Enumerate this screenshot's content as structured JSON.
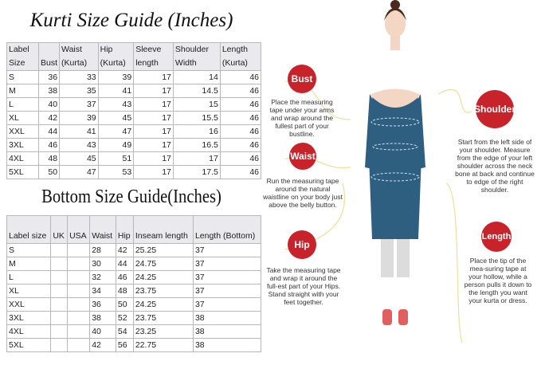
{
  "kurti": {
    "title": "Kurti Size Guide (Inches)",
    "headers": [
      "Label Size",
      "Bust",
      "Waist (Kurta)",
      "Hip (Kurta)",
      "Sleeve length",
      "Shoulder Width",
      "Length (Kurta)"
    ],
    "rows": [
      [
        "S",
        "36",
        "33",
        "39",
        "17",
        "14",
        "46"
      ],
      [
        "M",
        "38",
        "35",
        "41",
        "17",
        "14.5",
        "46"
      ],
      [
        "L",
        "40",
        "37",
        "43",
        "17",
        "15",
        "46"
      ],
      [
        "XL",
        "42",
        "39",
        "45",
        "17",
        "15.5",
        "46"
      ],
      [
        "XXL",
        "44",
        "41",
        "47",
        "17",
        "16",
        "46"
      ],
      [
        "3XL",
        "46",
        "43",
        "49",
        "17",
        "16.5",
        "46"
      ],
      [
        "4XL",
        "48",
        "45",
        "51",
        "17",
        "17",
        "46"
      ],
      [
        "5XL",
        "50",
        "47",
        "53",
        "17",
        "17.5",
        "46"
      ]
    ]
  },
  "bottom": {
    "title": "Bottom Size Guide(Inches)",
    "headers": [
      "Label size",
      "UK",
      "USA",
      "Waist",
      "Hip",
      "Inseam length",
      "Length (Bottom)"
    ],
    "rows": [
      [
        "S",
        "",
        "",
        "28",
        "42",
        "25.25",
        "37"
      ],
      [
        "M",
        "",
        "",
        "30",
        "44",
        "24.75",
        "37"
      ],
      [
        "L",
        "",
        "",
        "32",
        "46",
        "24.25",
        "37"
      ],
      [
        "XL",
        "",
        "",
        "34",
        "48",
        "23.75",
        "37"
      ],
      [
        "XXL",
        "",
        "",
        "36",
        "50",
        "24.25",
        "37"
      ],
      [
        "3XL",
        "",
        "",
        "38",
        "52",
        "23.75",
        "38"
      ],
      [
        "4XL",
        "",
        "",
        "40",
        "54",
        "23.25",
        "38"
      ],
      [
        "5XL",
        "",
        "",
        "42",
        "56",
        "22.75",
        "38"
      ]
    ]
  },
  "guide": {
    "accent": "#c8232a",
    "dress_color": "#2f5f80",
    "bust": {
      "label": "Bust",
      "text": "Place the measuring tape under your arms and wrap around the fullest part of your bustline."
    },
    "shoulder": {
      "label": "Shoulder",
      "text": "Start from the left side of your shoulder. Measure from the edge of your left shoulder across the neck bone at back and continue to edge of the right shoulder."
    },
    "waist": {
      "label": "Waist",
      "text": "Run the measuring tape around the natural waistline on your body just above the belly button."
    },
    "hip": {
      "label": "Hip",
      "text": "Take the measuring tape and wrap it around the full-est part of your Hips. Stand straight with your feet together."
    },
    "length": {
      "label": "Length",
      "text": "Place the tip of the mea-suring tape at your hollow, while a person pulls it down to the length you want your kurta or dress."
    }
  }
}
